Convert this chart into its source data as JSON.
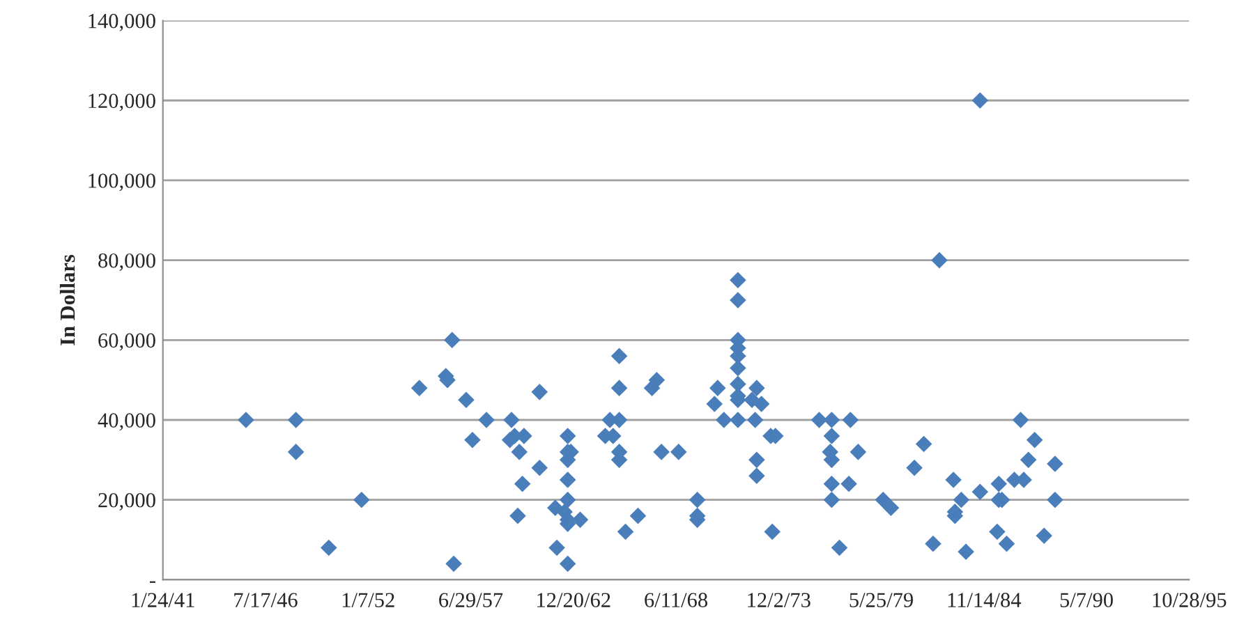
{
  "chart_data": {
    "type": "scatter",
    "ylabel": "In Dollars",
    "color": "#4a7ebb",
    "marker": "diamond",
    "grid": "y",
    "legend": false,
    "xlim": [
      "1941-01-24",
      "1995-10-28"
    ],
    "xticks": [
      {
        "value": "1941-01-24",
        "label": "1/24/41"
      },
      {
        "value": "1946-07-17",
        "label": "7/17/46"
      },
      {
        "value": "1952-01-07",
        "label": "1/7/52"
      },
      {
        "value": "1957-06-29",
        "label": "6/29/57"
      },
      {
        "value": "1962-12-20",
        "label": "12/20/62"
      },
      {
        "value": "1968-06-11",
        "label": "6/11/68"
      },
      {
        "value": "1973-12-02",
        "label": "12/2/73"
      },
      {
        "value": "1979-05-25",
        "label": "5/25/79"
      },
      {
        "value": "1984-11-14",
        "label": "11/14/84"
      },
      {
        "value": "1990-05-07",
        "label": "5/7/90"
      },
      {
        "value": "1995-10-28",
        "label": "10/28/95"
      }
    ],
    "ylim": [
      0,
      140000
    ],
    "yticks": [
      {
        "value": 0,
        "label": "-"
      },
      {
        "value": 20000,
        "label": "20,000"
      },
      {
        "value": 40000,
        "label": "40,000"
      },
      {
        "value": 60000,
        "label": "60,000"
      },
      {
        "value": 80000,
        "label": "80,000"
      },
      {
        "value": 100000,
        "label": "100,000"
      },
      {
        "value": 120000,
        "label": "120,000"
      },
      {
        "value": 140000,
        "label": "140,000"
      }
    ],
    "x": [
      "1945-07",
      "1948-03",
      "1948-03",
      "1949-12",
      "1951-09",
      "1954-10",
      "1956-03",
      "1956-04",
      "1956-07",
      "1956-08",
      "1957-04",
      "1957-08",
      "1958-05",
      "1959-09",
      "1959-08",
      "1959-11",
      "1960-02",
      "1960-01",
      "1960-04",
      "1960-05",
      "1961-03",
      "1961-03",
      "1962-01",
      "1962-02",
      "1962-09",
      "1962-09",
      "1962-09",
      "1962-09",
      "1962-09",
      "1962-07",
      "1962-09",
      "1962-09",
      "1962-09",
      "1962-11",
      "1963-05",
      "1964-09",
      "1964-12",
      "1965-02",
      "1965-06",
      "1965-06",
      "1965-06",
      "1965-06",
      "1965-06",
      "1965-10",
      "1966-06",
      "1967-03",
      "1967-06",
      "1967-09",
      "1968-08",
      "1969-08",
      "1969-08",
      "1969-08",
      "1970-07",
      "1970-09",
      "1971-01",
      "1971-10",
      "1971-10",
      "1971-10",
      "1971-10",
      "1971-10",
      "1971-10",
      "1971-10",
      "1971-10",
      "1971-10",
      "1971-10",
      "1972-07",
      "1972-10",
      "1972-09",
      "1972-10",
      "1972-10",
      "1973-01",
      "1973-07",
      "1973-10",
      "1973-08",
      "1976-02",
      "1976-10",
      "1976-10",
      "1976-09",
      "1976-10",
      "1976-10",
      "1976-10",
      "1977-03",
      "1977-09",
      "1977-10",
      "1978-03",
      "1979-07",
      "1979-12",
      "1981-03",
      "1981-09",
      "1982-03",
      "1982-07",
      "1983-04",
      "1983-05",
      "1983-05",
      "1983-09",
      "1983-12",
      "1984-09",
      "1984-09",
      "1985-08",
      "1985-09",
      "1985-09",
      "1985-11",
      "1986-02",
      "1986-07",
      "1986-11",
      "1987-01",
      "1987-04",
      "1987-08",
      "1988-02",
      "1988-09",
      "1988-09"
    ],
    "values": [
      40000,
      40000,
      32000,
      8000,
      20000,
      48000,
      51000,
      50000,
      60000,
      4000,
      45000,
      35000,
      40000,
      40000,
      35000,
      36000,
      32000,
      16000,
      24000,
      36000,
      28000,
      47000,
      18000,
      8000,
      36000,
      32000,
      30000,
      25000,
      20000,
      17000,
      15000,
      14000,
      4000,
      32000,
      15000,
      36000,
      40000,
      36000,
      56000,
      48000,
      40000,
      32000,
      30000,
      12000,
      16000,
      48000,
      50000,
      32000,
      32000,
      20000,
      16000,
      15000,
      44000,
      48000,
      40000,
      75000,
      70000,
      60000,
      58000,
      56000,
      53000,
      49000,
      46000,
      45000,
      40000,
      45000,
      48000,
      40000,
      30000,
      26000,
      44000,
      36000,
      36000,
      12000,
      40000,
      40000,
      36000,
      32000,
      30000,
      24000,
      20000,
      8000,
      24000,
      40000,
      32000,
      20000,
      18000,
      28000,
      34000,
      9000,
      80000,
      25000,
      16000,
      17000,
      20000,
      7000,
      120000,
      22000,
      12000,
      24000,
      20000,
      20000,
      9000,
      25000,
      40000,
      25000,
      30000,
      35000,
      11000,
      29000,
      20000
    ]
  }
}
